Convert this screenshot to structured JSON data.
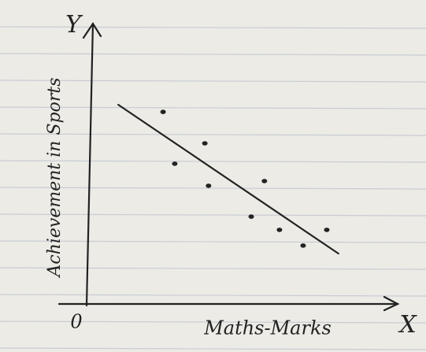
{
  "chart_data": {
    "type": "scatter",
    "x_label": "Maths-Marks",
    "y_label": "Achievement in Sports",
    "x_axis_name": "X",
    "y_axis_name": "Y",
    "origin_label": "0",
    "xlim": [
      0,
      100
    ],
    "ylim": [
      0,
      100
    ],
    "color": "#222222",
    "series": [
      {
        "x": [
          24.9,
          38.5,
          28.7,
          39.7,
          57.9,
          53.6,
          62.8,
          70.5,
          78.2
        ],
        "values": [
          69.4,
          58,
          50.6,
          42.6,
          44.3,
          31.4,
          26.6,
          20.9,
          26.6
        ]
      }
    ],
    "trend_line": {
      "x": [
        10.3,
        82
      ],
      "y": [
        72,
        18
      ]
    }
  }
}
